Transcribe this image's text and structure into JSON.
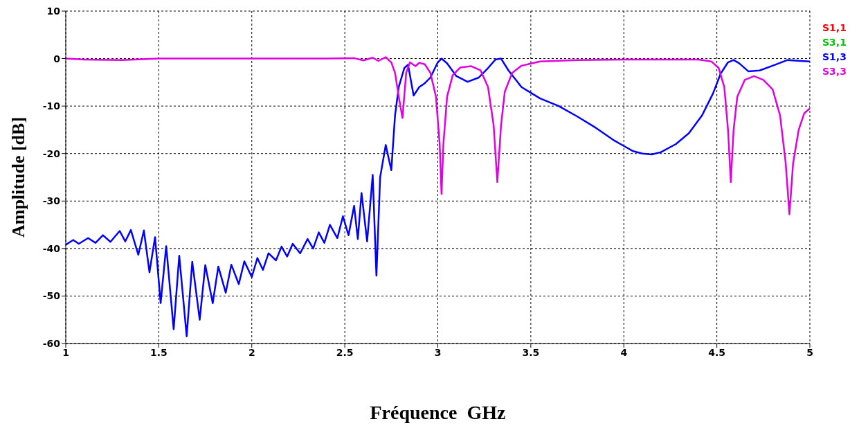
{
  "chart_data": {
    "type": "line",
    "xlabel": "Fréquence  GHz",
    "ylabel": "Amplitude [dB]",
    "xlim": [
      1,
      5
    ],
    "xticks": [
      1,
      1.5,
      2,
      2.5,
      3,
      3.5,
      4,
      4.5,
      5
    ],
    "ylim": [
      -60,
      10
    ],
    "yticks": [
      -60,
      -50,
      -40,
      -30,
      -20,
      -10,
      0,
      10
    ],
    "grid": true,
    "legend": "top right",
    "marker": "none",
    "line_style": "solid",
    "series": [
      {
        "name": "S1,1",
        "color": "#ff0000"
      },
      {
        "name": "S3,1",
        "color": "#00c800"
      },
      {
        "name": "S1,3",
        "color": "#0000ff",
        "x": [
          1.0,
          1.04,
          1.07,
          1.12,
          1.16,
          1.2,
          1.24,
          1.29,
          1.32,
          1.35,
          1.39,
          1.42,
          1.45,
          1.48,
          1.51,
          1.54,
          1.58,
          1.61,
          1.65,
          1.68,
          1.72,
          1.75,
          1.79,
          1.82,
          1.86,
          1.89,
          1.93,
          1.96,
          2.0,
          2.03,
          2.06,
          2.09,
          2.13,
          2.16,
          2.19,
          2.22,
          2.26,
          2.3,
          2.33,
          2.36,
          2.39,
          2.42,
          2.46,
          2.49,
          2.52,
          2.55,
          2.57,
          2.59,
          2.62,
          2.65,
          2.67,
          2.69,
          2.72,
          2.75,
          2.77,
          2.79,
          2.82,
          2.84,
          2.87,
          2.9,
          2.93,
          2.96,
          3.0,
          3.02,
          3.05,
          3.1,
          3.16,
          3.22,
          3.27,
          3.31,
          3.34,
          3.38,
          3.45,
          3.55,
          3.65,
          3.75,
          3.85,
          3.95,
          4.0,
          4.05,
          4.1,
          4.15,
          4.2,
          4.28,
          4.35,
          4.42,
          4.48,
          4.52,
          4.56,
          4.59,
          4.62,
          4.67,
          4.73,
          4.8,
          4.88,
          4.95,
          5.0
        ],
        "values": [
          -39.2,
          -38.2,
          -39,
          -37.8,
          -38.8,
          -37.2,
          -38.6,
          -36.3,
          -38.5,
          -36.1,
          -41.3,
          -36.2,
          -45,
          -37.6,
          -51.5,
          -39.5,
          -57,
          -41.5,
          -58.5,
          -42.8,
          -55,
          -43.5,
          -51.5,
          -43.8,
          -49.3,
          -43.4,
          -47.5,
          -42.7,
          -46,
          -42,
          -44.5,
          -41,
          -42.5,
          -39.6,
          -41.7,
          -39,
          -41,
          -38,
          -40,
          -36.6,
          -38.8,
          -35,
          -37.8,
          -33.2,
          -37.2,
          -31,
          -38,
          -28.3,
          -38.5,
          -24.5,
          -45.7,
          -25,
          -18.2,
          -23.5,
          -12,
          -6,
          -2,
          -1.3,
          -7.8,
          -6,
          -5.2,
          -4,
          -0.8,
          0,
          -1,
          -3.7,
          -4.9,
          -4,
          -2,
          -0.2,
          0,
          -2.5,
          -6,
          -8.4,
          -10,
          -12.2,
          -14.6,
          -17.3,
          -18.4,
          -19.5,
          -20,
          -20.2,
          -19.7,
          -18,
          -15.7,
          -12,
          -7.3,
          -3.2,
          -0.8,
          -0.3,
          -1,
          -2.7,
          -2.5,
          -1.5,
          -0.3,
          -0.5,
          -0.6
        ]
      },
      {
        "name": "S3,3",
        "color": "#e000e0",
        "x": [
          1.0,
          1.1,
          1.3,
          1.5,
          2.0,
          2.4,
          2.55,
          2.6,
          2.65,
          2.68,
          2.72,
          2.75,
          2.77,
          2.79,
          2.81,
          2.83,
          2.85,
          2.88,
          2.9,
          2.93,
          2.96,
          2.99,
          3.01,
          3.02,
          3.03,
          3.05,
          3.08,
          3.12,
          3.18,
          3.23,
          3.27,
          3.3,
          3.32,
          3.34,
          3.36,
          3.4,
          3.45,
          3.55,
          3.75,
          4.0,
          4.4,
          4.47,
          4.51,
          4.54,
          4.56,
          4.575,
          4.59,
          4.61,
          4.65,
          4.7,
          4.75,
          4.8,
          4.84,
          4.87,
          4.89,
          4.91,
          4.94,
          4.97,
          5.0
        ],
        "values": [
          0,
          -0.2,
          -0.3,
          0,
          0,
          0,
          0.1,
          -0.4,
          0.2,
          -0.5,
          0.3,
          -0.8,
          -3,
          -8,
          -12.5,
          -3,
          -0.8,
          -1.6,
          -0.9,
          -1.2,
          -3,
          -8,
          -18,
          -28.5,
          -18,
          -8,
          -3.5,
          -1.9,
          -1.6,
          -2.5,
          -6,
          -14,
          -26,
          -14,
          -7,
          -3,
          -1.5,
          -0.6,
          -0.3,
          -0.2,
          -0.2,
          -0.6,
          -2,
          -6,
          -15,
          -26,
          -15,
          -8,
          -4.5,
          -3.7,
          -4.5,
          -6.5,
          -12,
          -22,
          -32.8,
          -22,
          -15,
          -11.5,
          -10.5
        ]
      }
    ]
  }
}
